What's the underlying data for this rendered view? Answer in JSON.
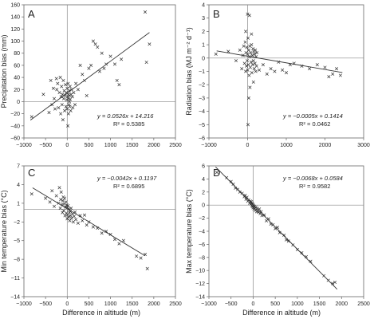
{
  "figure": {
    "x_axis_title": "Difference in altitude (m)"
  },
  "chart_data": [
    {
      "type": "scatter",
      "panel_label": "A",
      "xlabel": "Difference in altitude (m)",
      "ylabel": "Precipitation bias (mm)",
      "xlim": [
        -1000,
        2500
      ],
      "ylim": [
        -60,
        160
      ],
      "xticks": [
        -1000,
        -500,
        0,
        500,
        1000,
        1500,
        2000,
        2500
      ],
      "yticks": [
        -60,
        -40,
        -20,
        0,
        20,
        40,
        60,
        80,
        100,
        120,
        140,
        160
      ],
      "trendline": {
        "slope": 0.0526,
        "intercept": 14.216,
        "x_range": [
          -850,
          1900
        ]
      },
      "equation": "y = 0.0526x + 14.216",
      "r2_label": "R² = 0.5385",
      "points": [
        [
          -820,
          -25
        ],
        [
          -550,
          12
        ],
        [
          -420,
          -18
        ],
        [
          -380,
          35
        ],
        [
          -350,
          -5
        ],
        [
          -320,
          22
        ],
        [
          -300,
          5
        ],
        [
          -280,
          -12
        ],
        [
          -250,
          38
        ],
        [
          -240,
          20
        ],
        [
          -220,
          30
        ],
        [
          -200,
          -10
        ],
        [
          -180,
          15
        ],
        [
          -160,
          40
        ],
        [
          -150,
          -20
        ],
        [
          -140,
          8
        ],
        [
          -130,
          25
        ],
        [
          -120,
          -5
        ],
        [
          -110,
          12
        ],
        [
          -100,
          -30
        ],
        [
          -90,
          35
        ],
        [
          -80,
          5
        ],
        [
          -70,
          18
        ],
        [
          -60,
          -15
        ],
        [
          -50,
          10
        ],
        [
          -40,
          28
        ],
        [
          -30,
          -8
        ],
        [
          -20,
          15
        ],
        [
          -10,
          3
        ],
        [
          0,
          22
        ],
        [
          0,
          -12
        ],
        [
          10,
          8
        ],
        [
          15,
          -40
        ],
        [
          20,
          30
        ],
        [
          25,
          5
        ],
        [
          30,
          -20
        ],
        [
          35,
          12
        ],
        [
          40,
          -5
        ],
        [
          45,
          18
        ],
        [
          50,
          0
        ],
        [
          55,
          10
        ],
        [
          60,
          -8
        ],
        [
          65,
          25
        ],
        [
          70,
          4
        ],
        [
          80,
          -15
        ],
        [
          90,
          12
        ],
        [
          100,
          20
        ],
        [
          120,
          8
        ],
        [
          130,
          -10
        ],
        [
          150,
          15
        ],
        [
          180,
          -5
        ],
        [
          200,
          30
        ],
        [
          250,
          20
        ],
        [
          300,
          60
        ],
        [
          350,
          45
        ],
        [
          400,
          35
        ],
        [
          450,
          10
        ],
        [
          500,
          55
        ],
        [
          550,
          60
        ],
        [
          600,
          100
        ],
        [
          650,
          95
        ],
        [
          700,
          90
        ],
        [
          750,
          50
        ],
        [
          800,
          80
        ],
        [
          850,
          55
        ],
        [
          900,
          62
        ],
        [
          1000,
          75
        ],
        [
          1100,
          62
        ],
        [
          1150,
          35
        ],
        [
          1200,
          28
        ],
        [
          1250,
          70
        ],
        [
          1800,
          148
        ],
        [
          1830,
          65
        ],
        [
          1900,
          95
        ]
      ]
    },
    {
      "type": "scatter",
      "panel_label": "B",
      "xlabel": "Difference in altitude (m)",
      "ylabel": "Radiation bias (MJ m⁻² d⁻¹)",
      "xlim": [
        -1000,
        3000
      ],
      "ylim": [
        -6,
        4
      ],
      "xticks": [
        -1000,
        0,
        1000,
        2000,
        3000
      ],
      "yticks": [
        -6,
        -5,
        -4,
        -3,
        -2,
        -1,
        0,
        1,
        2,
        3,
        4
      ],
      "trendline": {
        "slope": -0.0005,
        "intercept": 0.1414,
        "x_range": [
          -800,
          2450
        ]
      },
      "equation": "y = −0.0005x + 0.1414",
      "r2_label": "R² = 0.0462",
      "points": [
        [
          -820,
          0.3
        ],
        [
          -500,
          0.5
        ],
        [
          -300,
          -0.2
        ],
        [
          -200,
          0.6
        ],
        [
          -150,
          -0.8
        ],
        [
          -120,
          0.2
        ],
        [
          -100,
          0.9
        ],
        [
          -80,
          -0.4
        ],
        [
          -60,
          1.2
        ],
        [
          -50,
          -1.0
        ],
        [
          -40,
          0.4
        ],
        [
          -30,
          -0.6
        ],
        [
          -20,
          0.8
        ],
        [
          -10,
          -0.2
        ],
        [
          0,
          0.3
        ],
        [
          0,
          -0.9
        ],
        [
          10,
          1.5
        ],
        [
          20,
          -0.5
        ],
        [
          30,
          0.6
        ],
        [
          40,
          -1.3
        ],
        [
          50,
          0.1
        ],
        [
          60,
          0.9
        ],
        [
          70,
          -0.7
        ],
        [
          80,
          0.4
        ],
        [
          90,
          -0.3
        ],
        [
          100,
          1.0
        ],
        [
          110,
          -1.1
        ],
        [
          120,
          0.2
        ],
        [
          130,
          -0.5
        ],
        [
          140,
          0.7
        ],
        [
          150,
          -0.2
        ],
        [
          160,
          0.5
        ],
        [
          170,
          -0.8
        ],
        [
          180,
          0.3
        ],
        [
          190,
          -0.4
        ],
        [
          200,
          0.6
        ],
        [
          210,
          -1.0
        ],
        [
          220,
          0.1
        ],
        [
          230,
          -0.6
        ],
        [
          240,
          0.4
        ],
        [
          0,
          3.3
        ],
        [
          50,
          3.2
        ],
        [
          100,
          1.8
        ],
        [
          -50,
          2.0
        ],
        [
          10,
          -5.0
        ],
        [
          30,
          -3.0
        ],
        [
          60,
          -2.2
        ],
        [
          150,
          -1.8
        ],
        [
          300,
          -0.9
        ],
        [
          400,
          -0.5
        ],
        [
          500,
          -1.2
        ],
        [
          600,
          -0.8
        ],
        [
          700,
          -1.0
        ],
        [
          800,
          -0.3
        ],
        [
          900,
          -0.9
        ],
        [
          1000,
          -1.1
        ],
        [
          1100,
          -0.5
        ],
        [
          1200,
          -0.4
        ],
        [
          1400,
          -0.6
        ],
        [
          1600,
          -0.8
        ],
        [
          1800,
          -0.5
        ],
        [
          2000,
          -0.7
        ],
        [
          2100,
          -1.4
        ],
        [
          2200,
          -1.2
        ],
        [
          2300,
          -0.8
        ],
        [
          2400,
          -1.3
        ]
      ]
    },
    {
      "type": "scatter",
      "panel_label": "C",
      "xlabel": "Difference in altitude (m)",
      "ylabel": "Min temperature bias (°C)",
      "xlim": [
        -1000,
        2500
      ],
      "ylim": [
        -14,
        7
      ],
      "xticks": [
        -1000,
        -500,
        0,
        500,
        1000,
        1500,
        2000,
        2500
      ],
      "yticks": [
        -14,
        -11,
        -8,
        -5,
        -2,
        1,
        4,
        7
      ],
      "trendline": {
        "slope": -0.0042,
        "intercept": 0.1197,
        "x_range": [
          -800,
          1800
        ]
      },
      "equation": "y = −0.0042x + 0.1197",
      "r2_label": "R² = 0.6895",
      "points": [
        [
          -820,
          2.5
        ],
        [
          -500,
          1.8
        ],
        [
          -400,
          1.2
        ],
        [
          -350,
          3.0
        ],
        [
          -300,
          0.5
        ],
        [
          -250,
          2.2
        ],
        [
          -200,
          1.0
        ],
        [
          -180,
          3.5
        ],
        [
          -160,
          0.2
        ],
        [
          -150,
          1.6
        ],
        [
          -140,
          2.8
        ],
        [
          -120,
          0.8
        ],
        [
          -110,
          -0.5
        ],
        [
          -100,
          1.4
        ],
        [
          -90,
          2.0
        ],
        [
          -80,
          -0.2
        ],
        [
          -70,
          0.9
        ],
        [
          -60,
          1.8
        ],
        [
          -50,
          -1.0
        ],
        [
          -40,
          0.4
        ],
        [
          -30,
          1.2
        ],
        [
          -20,
          -0.6
        ],
        [
          -10,
          0.7
        ],
        [
          0,
          -1.5
        ],
        [
          0,
          0.3
        ],
        [
          10,
          -0.8
        ],
        [
          20,
          0.6
        ],
        [
          30,
          -1.2
        ],
        [
          40,
          0.1
        ],
        [
          50,
          -0.5
        ],
        [
          60,
          -1.8
        ],
        [
          70,
          -0.3
        ],
        [
          80,
          -1.0
        ],
        [
          90,
          0.2
        ],
        [
          100,
          -1.4
        ],
        [
          120,
          -0.7
        ],
        [
          140,
          -2.0
        ],
        [
          160,
          -1.1
        ],
        [
          180,
          -0.4
        ],
        [
          200,
          -1.6
        ],
        [
          250,
          -2.2
        ],
        [
          300,
          -1.0
        ],
        [
          350,
          -1.8
        ],
        [
          400,
          -0.9
        ],
        [
          450,
          -2.5
        ],
        [
          500,
          -2.0
        ],
        [
          600,
          -2.8
        ],
        [
          700,
          -3.0
        ],
        [
          800,
          -3.8
        ],
        [
          900,
          -3.5
        ],
        [
          1000,
          -4.0
        ],
        [
          1100,
          -4.8
        ],
        [
          1200,
          -5.5
        ],
        [
          1300,
          -5.0
        ],
        [
          1600,
          -7.5
        ],
        [
          1700,
          -7.8
        ],
        [
          1800,
          -7.2
        ],
        [
          1850,
          -9.5
        ]
      ]
    },
    {
      "type": "scatter",
      "panel_label": "D",
      "xlabel": "Difference in altitude (m)",
      "ylabel": "Max temperature bias (°C)",
      "xlim": [
        -1000,
        2500
      ],
      "ylim": [
        -14,
        6
      ],
      "xticks": [
        -1000,
        -500,
        0,
        500,
        1000,
        1500,
        2000,
        2500
      ],
      "yticks": [
        -14,
        -12,
        -10,
        -8,
        -6,
        -4,
        -2,
        0,
        2,
        4,
        6
      ],
      "trendline": {
        "slope": -0.0068,
        "intercept": 0.0584,
        "x_range": [
          -850,
          1900
        ]
      },
      "equation": "y = −0.0068x + 0.0584",
      "r2_label": "R² = 0.9582",
      "points": [
        [
          -820,
          5.0
        ],
        [
          -600,
          4.2
        ],
        [
          -500,
          3.6
        ],
        [
          -450,
          3.2
        ],
        [
          -400,
          2.6
        ],
        [
          -350,
          2.4
        ],
        [
          -300,
          2.0
        ],
        [
          -250,
          1.8
        ],
        [
          -200,
          1.3
        ],
        [
          -180,
          1.5
        ],
        [
          -160,
          0.9
        ],
        [
          -140,
          1.2
        ],
        [
          -120,
          0.6
        ],
        [
          -100,
          0.8
        ],
        [
          -80,
          0.3
        ],
        [
          -60,
          0.6
        ],
        [
          -50,
          0.2
        ],
        [
          -40,
          0.5
        ],
        [
          -30,
          -0.1
        ],
        [
          -20,
          0.3
        ],
        [
          -10,
          -0.2
        ],
        [
          0,
          0.1
        ],
        [
          0,
          -0.4
        ],
        [
          10,
          -0.1
        ],
        [
          20,
          -0.6
        ],
        [
          30,
          -0.2
        ],
        [
          40,
          -0.5
        ],
        [
          50,
          -0.8
        ],
        [
          60,
          -0.3
        ],
        [
          70,
          -0.7
        ],
        [
          80,
          -1.0
        ],
        [
          90,
          -0.5
        ],
        [
          100,
          -0.9
        ],
        [
          120,
          -1.1
        ],
        [
          140,
          -0.6
        ],
        [
          160,
          -1.3
        ],
        [
          180,
          -1.0
        ],
        [
          200,
          -1.6
        ],
        [
          250,
          -1.5
        ],
        [
          300,
          -2.4
        ],
        [
          350,
          -2.1
        ],
        [
          400,
          -2.9
        ],
        [
          450,
          -3.0
        ],
        [
          500,
          -3.6
        ],
        [
          550,
          -3.4
        ],
        [
          600,
          -4.2
        ],
        [
          700,
          -4.6
        ],
        [
          750,
          -5.3
        ],
        [
          800,
          -5.5
        ],
        [
          900,
          -6.1
        ],
        [
          1000,
          -6.8
        ],
        [
          1100,
          -7.3
        ],
        [
          1200,
          -7.9
        ],
        [
          1300,
          -8.6
        ],
        [
          1600,
          -10.8
        ],
        [
          1700,
          -11.5
        ],
        [
          1800,
          -12.0
        ],
        [
          1850,
          -11.8
        ]
      ]
    }
  ]
}
